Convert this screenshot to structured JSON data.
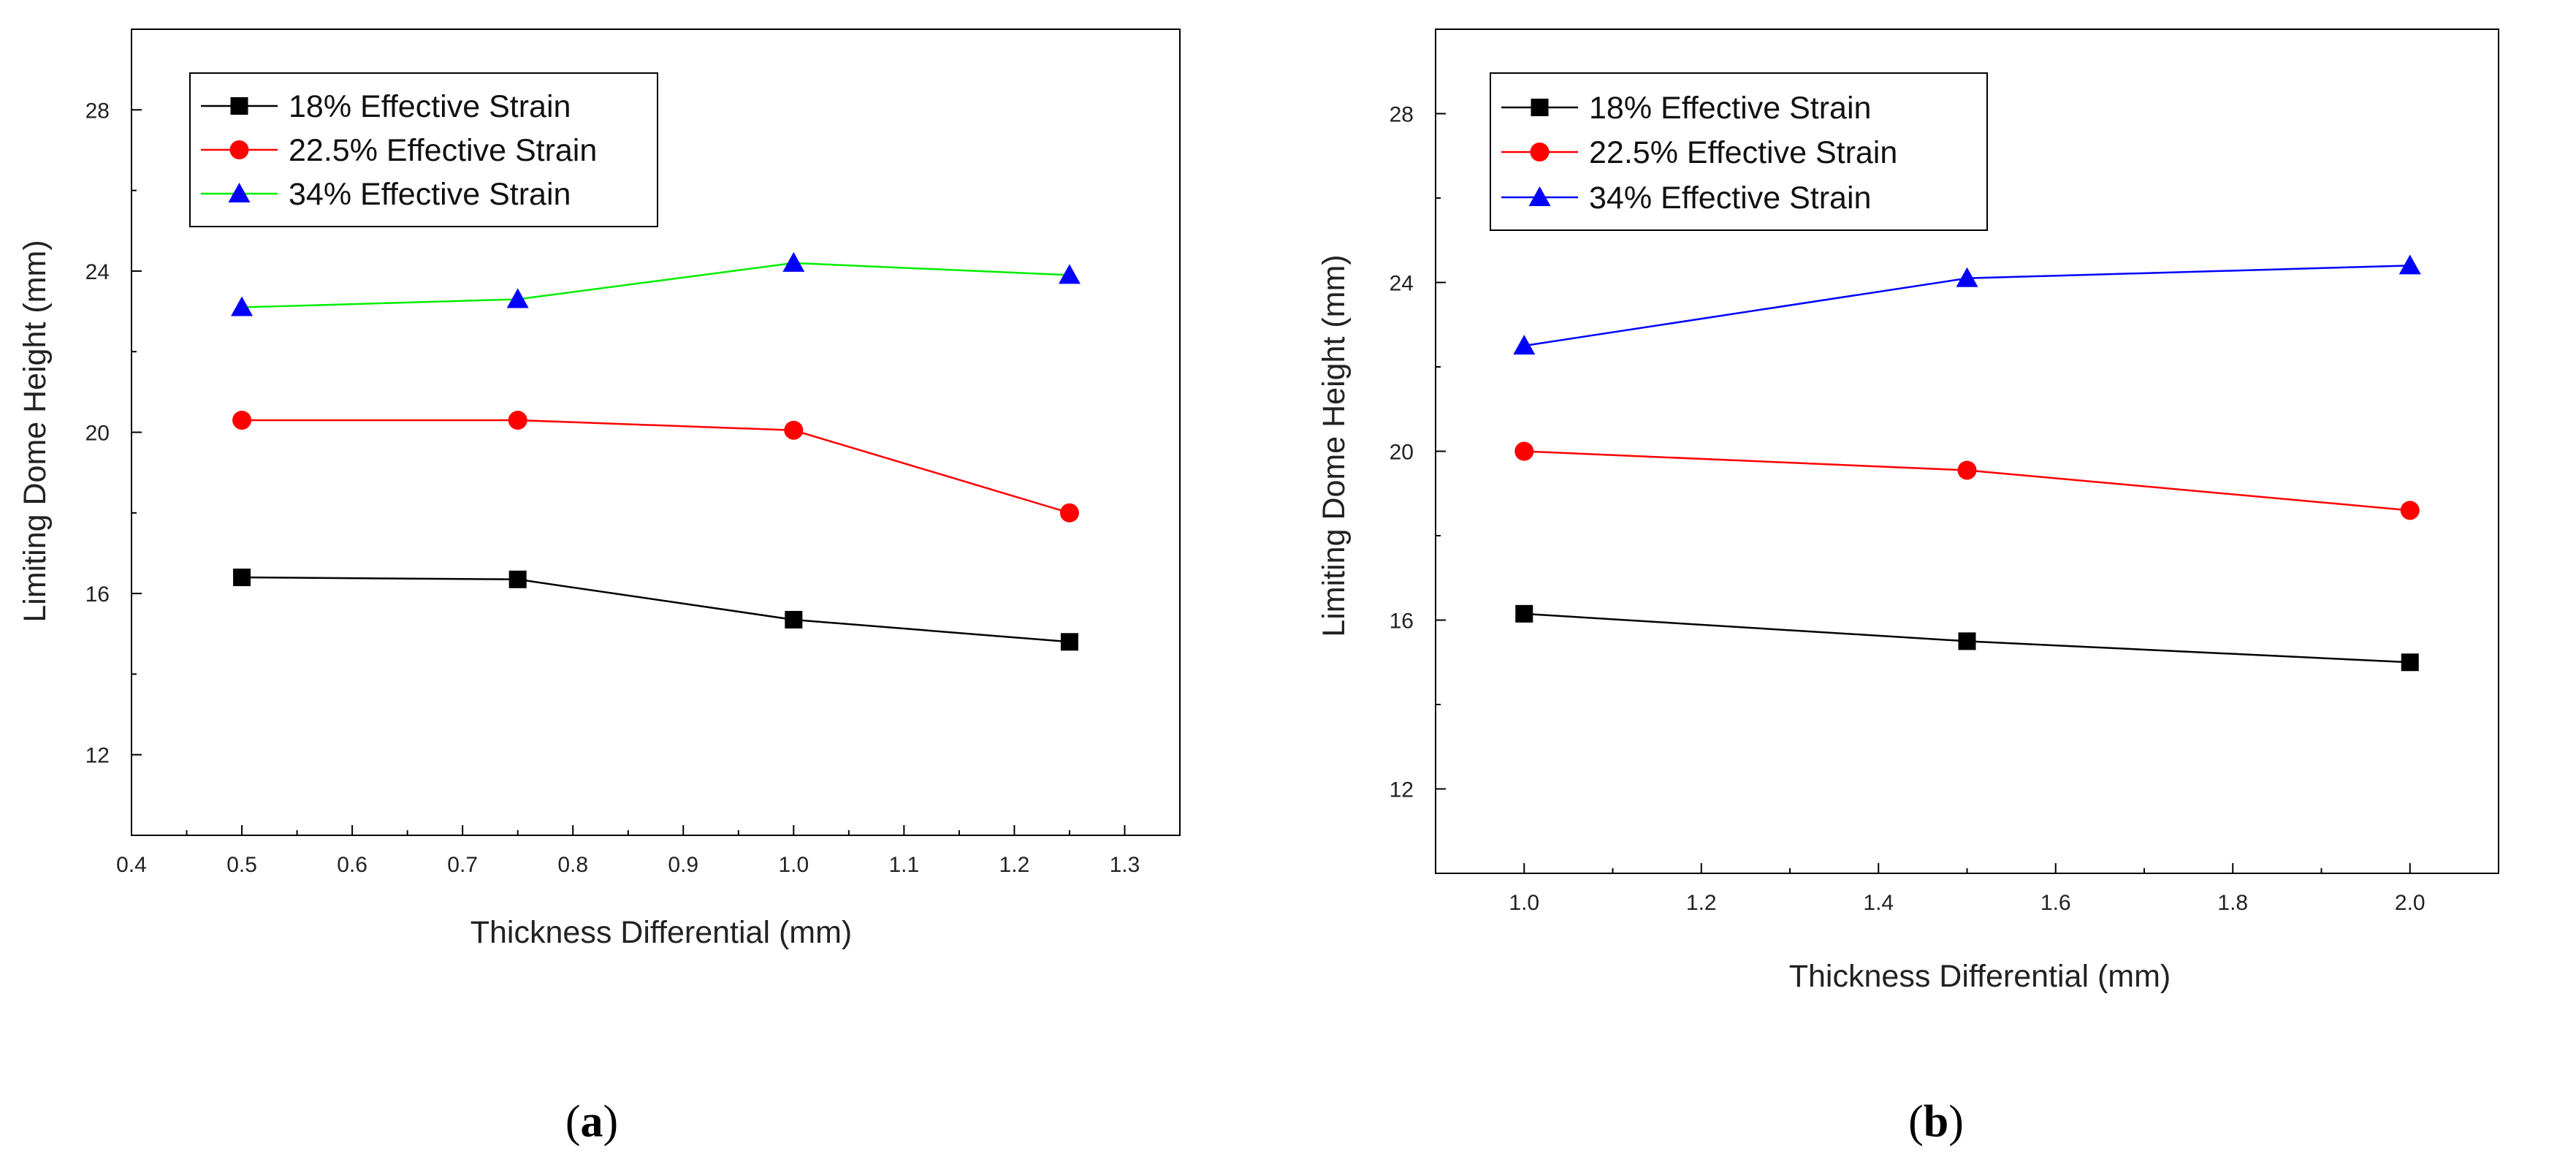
{
  "chart_data": [
    {
      "type": "line",
      "caption": "a",
      "xlabel": "Thickness Differential (mm)",
      "ylabel": "Limiting Dome Height (mm)",
      "xlim": [
        0.4,
        1.35
      ],
      "ylim": [
        10,
        30
      ],
      "xticks": [
        0.4,
        0.5,
        0.6,
        0.7,
        0.8,
        0.9,
        1.0,
        1.1,
        1.2,
        1.3
      ],
      "xtick_labels": [
        "0.4",
        "0.5",
        "0.6",
        "0.7",
        "0.8",
        "0.9",
        "1.0",
        "1.1",
        "1.2",
        "1.3"
      ],
      "yticks": [
        12,
        16,
        20,
        24,
        28
      ],
      "ytick_labels": [
        "12",
        "16",
        "20",
        "24",
        "28"
      ],
      "legend_position": "top-left",
      "x": [
        0.5,
        0.75,
        1.0,
        1.25
      ],
      "series": [
        {
          "name": "18% Effective Strain",
          "color": "#000000",
          "marker": "square",
          "values": [
            16.4,
            16.35,
            15.35,
            14.8
          ]
        },
        {
          "name": "22.5% Effective Strain",
          "color": "#ff0000",
          "marker": "circle",
          "values": [
            20.3,
            20.3,
            20.05,
            18.0
          ]
        },
        {
          "name": "34% Effective Strain",
          "color": "#00ee00",
          "marker_color": "#0000ff",
          "marker": "triangle",
          "values": [
            23.1,
            23.3,
            24.2,
            23.9
          ]
        }
      ]
    },
    {
      "type": "line",
      "caption": "b",
      "xlabel": "Thickness Differential (mm)",
      "ylabel": "Limiting Dome Height (mm)",
      "xlim": [
        0.9,
        2.1
      ],
      "ylim": [
        10,
        30
      ],
      "xticks": [
        1.0,
        1.2,
        1.4,
        1.6,
        1.8,
        2.0
      ],
      "xtick_labels": [
        "1.0",
        "1.2",
        "1.4",
        "1.6",
        "1.8",
        "2.0"
      ],
      "yticks": [
        12,
        16,
        20,
        24,
        28
      ],
      "ytick_labels": [
        "12",
        "16",
        "20",
        "24",
        "28"
      ],
      "legend_position": "top-left",
      "x": [
        1.0,
        1.5,
        2.0
      ],
      "series": [
        {
          "name": "18% Effective Strain",
          "color": "#000000",
          "marker": "square",
          "values": [
            16.15,
            15.5,
            15.0
          ]
        },
        {
          "name": "22.5% Effective Strain",
          "color": "#ff0000",
          "marker": "circle",
          "values": [
            20.0,
            19.55,
            18.6
          ]
        },
        {
          "name": "34% Effective Strain",
          "color": "#0000ff",
          "marker": "triangle",
          "values": [
            22.5,
            24.1,
            24.4
          ]
        }
      ]
    }
  ]
}
